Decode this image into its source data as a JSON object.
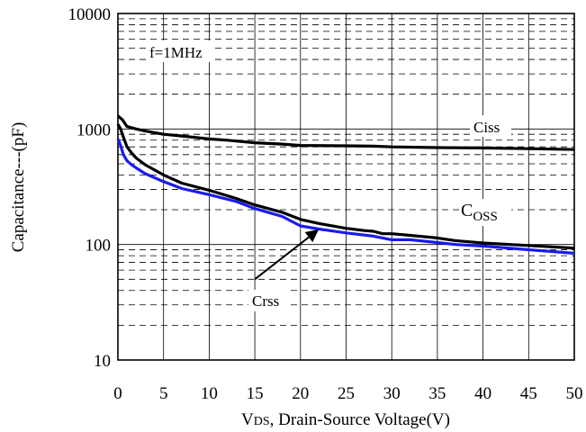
{
  "chart_data": {
    "type": "line",
    "title": "",
    "xlabel": "VDS, Drain-Source Voltage(V)",
    "xlabel_main": "V",
    "xlabel_sub": "DS",
    "xlabel_rest": ", Drain-Source Voltage(V)",
    "ylabel": "Capacitance---(pF)",
    "xlim": [
      0,
      50
    ],
    "ylim": [
      10,
      10000
    ],
    "yscale": "log",
    "grid": true,
    "x_ticks": [
      "0",
      "5",
      "10",
      "15",
      "20",
      "25",
      "30",
      "35",
      "40",
      "45",
      "50"
    ],
    "y_ticks": [
      "10",
      "100",
      "1000",
      "10000"
    ],
    "annotations": {
      "condition": "f=1MHz",
      "ciss": "Ciss",
      "coss_main": "C",
      "coss_sub": "OSS",
      "crss": "Crss"
    },
    "series": [
      {
        "name": "Ciss",
        "color": "#000000",
        "x": [
          0,
          0.5,
          1,
          2,
          3,
          5,
          7,
          10,
          12,
          15,
          18,
          20,
          25,
          28,
          30,
          35,
          40,
          45,
          50
        ],
        "y": [
          1300,
          1200,
          1050,
          1000,
          960,
          900,
          870,
          820,
          800,
          760,
          740,
          720,
          715,
          710,
          700,
          690,
          685,
          675,
          665
        ]
      },
      {
        "name": "Coss",
        "color": "#000000",
        "x": [
          0,
          0.3,
          0.6,
          1,
          1.5,
          2,
          3,
          5,
          7,
          10,
          13,
          15,
          18,
          20,
          22,
          25,
          27,
          28,
          29,
          30,
          32,
          35,
          37,
          40,
          45,
          50
        ],
        "y": [
          1100,
          1000,
          850,
          700,
          620,
          560,
          490,
          400,
          340,
          295,
          250,
          220,
          190,
          165,
          152,
          138,
          132,
          130,
          124,
          124,
          120,
          114,
          108,
          103,
          98,
          93
        ]
      },
      {
        "name": "Crss",
        "color": "#1a1aee",
        "x": [
          0,
          0.3,
          0.6,
          1,
          1.5,
          2,
          3,
          5,
          7,
          10,
          13,
          15,
          18,
          20,
          22,
          25,
          28,
          30,
          32,
          35,
          37,
          40,
          45,
          50
        ],
        "y": [
          820,
          720,
          600,
          530,
          490,
          460,
          410,
          350,
          305,
          270,
          235,
          205,
          175,
          145,
          136,
          126,
          118,
          110,
          110,
          104,
          100,
          97,
          90,
          84
        ]
      }
    ],
    "arrow": {
      "from": [
        15,
        50
      ],
      "to": [
        22,
        135
      ]
    }
  }
}
